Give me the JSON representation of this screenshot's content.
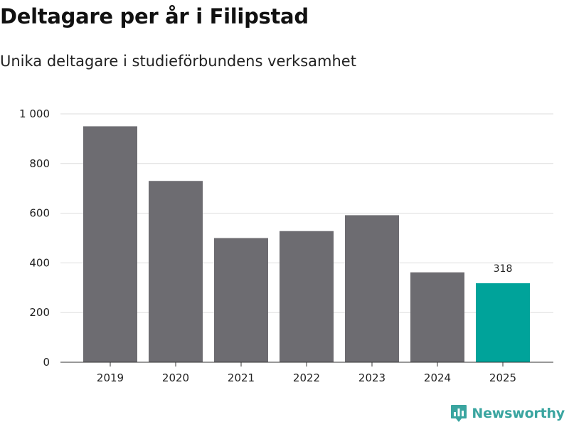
{
  "title": "Deltagare per år i Filipstad",
  "subtitle": "Unika deltagare i studieförbundens verksamhet",
  "brand": {
    "name": "Newsworthy",
    "logo_icon": "newsworthy-logo-icon",
    "color": "#3aa5a0"
  },
  "colors": {
    "bar": "#6d6c71",
    "highlight": "#00a39a",
    "grid": "#dddddd",
    "axis": "#333333"
  },
  "chart_data": {
    "type": "bar",
    "title": "Deltagare per år i Filipstad",
    "subtitle": "Unika deltagare i studieförbundens verksamhet",
    "xlabel": "",
    "ylabel": "",
    "categories": [
      "2019",
      "2020",
      "2021",
      "2022",
      "2023",
      "2024",
      "2025"
    ],
    "values": [
      950,
      730,
      500,
      528,
      592,
      362,
      318
    ],
    "highlight_index": 6,
    "data_labels": [
      {
        "index": 6,
        "text": "318"
      }
    ],
    "ylim": [
      0,
      1000
    ],
    "yticks": [
      0,
      200,
      400,
      600,
      800,
      1000
    ],
    "ytick_labels": [
      "0",
      "200",
      "400",
      "600",
      "800",
      "1 000"
    ],
    "grid": true,
    "legend": "none"
  }
}
